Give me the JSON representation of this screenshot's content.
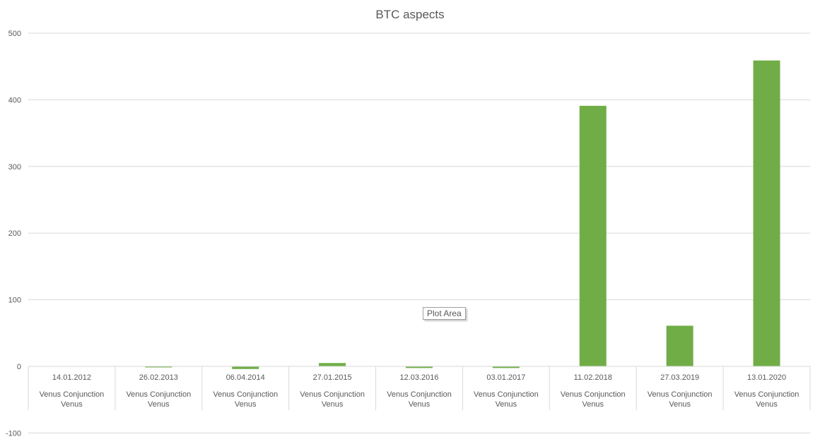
{
  "chart_data": {
    "type": "bar",
    "title": "BTC aspects",
    "xlabel": "",
    "ylabel": "",
    "ylim": [
      -100,
      500
    ],
    "yticks": [
      -100,
      0,
      100,
      200,
      300,
      400,
      500
    ],
    "grid": true,
    "categories": [
      {
        "date": "14.01.2012",
        "label": "Venus Conjunction Venus"
      },
      {
        "date": "26.02.2013",
        "label": "Venus Conjunction Venus"
      },
      {
        "date": "06.04.2014",
        "label": "Venus Conjunction Venus"
      },
      {
        "date": "27.01.2015",
        "label": "Venus Conjunction Venus"
      },
      {
        "date": "12.03.2016",
        "label": "Venus Conjunction Venus"
      },
      {
        "date": "03.01.2017",
        "label": "Venus Conjunction Venus"
      },
      {
        "date": "11.02.2018",
        "label": "Venus Conjunction Venus"
      },
      {
        "date": "27.03.2019",
        "label": "Venus Conjunction Venus"
      },
      {
        "date": "13.01.2020",
        "label": "Venus Conjunction Venus"
      }
    ],
    "values": [
      0,
      -1.5,
      -4,
      5,
      -2.5,
      -2.5,
      391,
      61,
      459
    ],
    "bar_color": "#70ad47"
  },
  "tooltip": "Plot Area"
}
